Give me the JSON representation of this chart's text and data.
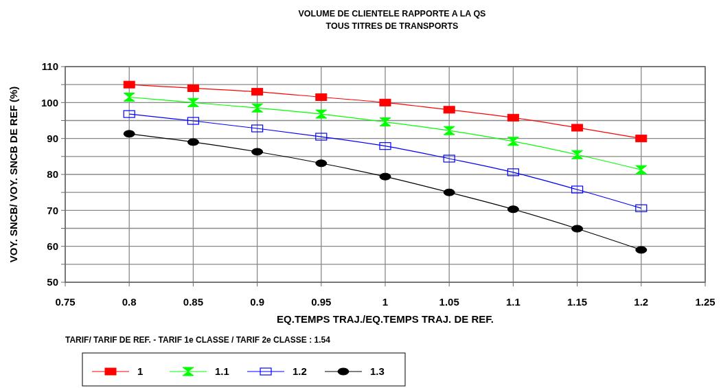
{
  "chart_data": {
    "type": "line",
    "title": "VOLUME DE CLIENTELE RAPPORTE A LA QS\nTOUS TITRES DE TRANSPORTS",
    "xlabel": "EQ.TEMPS TRAJ./EQ.TEMPS TRAJ. DE REF.",
    "ylabel": "VOY. SNCB/ VOY. SNCB DE REF  (%)",
    "annotations": [
      "TARIF/ TARIF DE REF. -  TARIF 1e CLASSE / TARIF 2e CLASSE : 1.54"
    ],
    "x": [
      0.8,
      0.85,
      0.9,
      0.95,
      1,
      1.05,
      1.1,
      1.15,
      1.2
    ],
    "series": [
      {
        "name": "1",
        "color": "#ff0000",
        "marker": "square",
        "values": [
          105,
          104,
          103,
          101.5,
          100,
          98,
          95.8,
          93,
          90
        ]
      },
      {
        "name": "1.1",
        "color": "#00ff00",
        "marker": "diamond",
        "values": [
          101.5,
          100,
          98.5,
          96.8,
          94.6,
          92.2,
          89.2,
          85.5,
          81.3
        ]
      },
      {
        "name": "1.2",
        "color": "#0000ff",
        "marker": "square",
        "values": [
          96.8,
          94.9,
          92.8,
          90.5,
          87.9,
          84.4,
          80.6,
          75.8,
          70.6
        ]
      },
      {
        "name": "1.3",
        "color": "#000000",
        "marker": "circle",
        "values": [
          91.3,
          89,
          86.3,
          83.1,
          79.4,
          75,
          70.3,
          64.9,
          59
        ]
      }
    ],
    "xlim": [
      0.75,
      1.25
    ],
    "xticks": [
      0.75,
      0.8,
      0.85,
      0.9,
      0.95,
      1,
      1.05,
      1.1,
      1.15,
      1.2,
      1.25
    ],
    "ylim": [
      50,
      110
    ],
    "yticks": [
      50,
      {
        "value": 55,
        "label": null
      },
      60,
      {
        "value": 65,
        "label": null
      },
      70,
      {
        "value": 75,
        "label": null
      },
      80,
      {
        "value": 85,
        "label": null
      },
      90,
      {
        "value": 95,
        "label": null
      },
      100,
      {
        "value": 105,
        "label": null
      },
      110
    ],
    "grid": true,
    "legend": "bottom",
    "line_style": "solid"
  }
}
